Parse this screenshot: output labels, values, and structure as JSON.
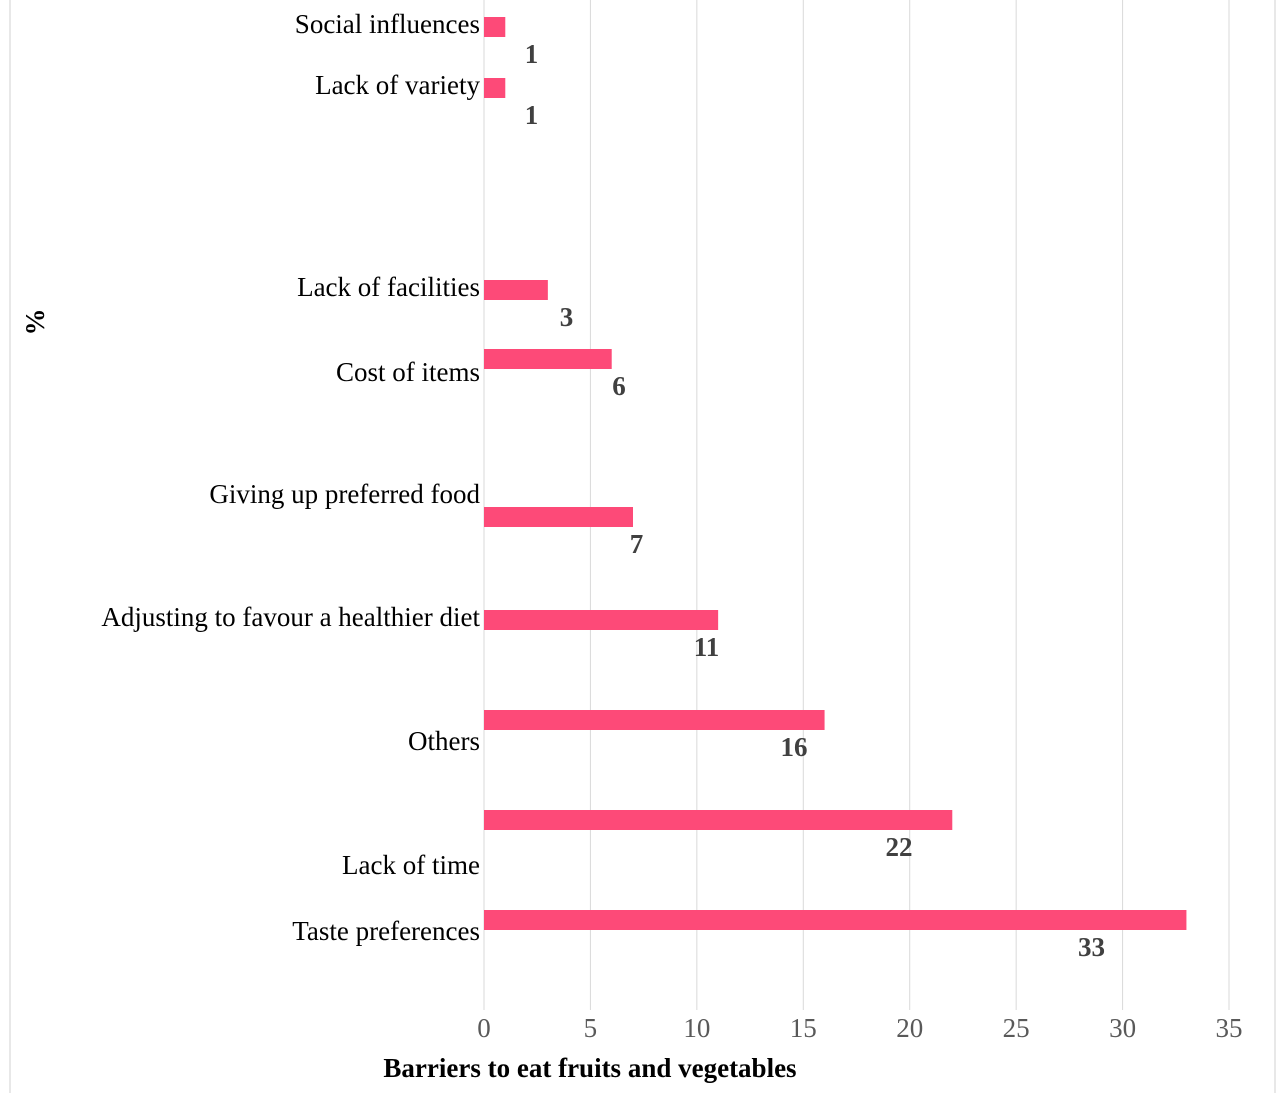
{
  "chart_data": {
    "type": "bar",
    "orientation": "horizontal",
    "x_label": "Barriers to eat fruits and vegetables",
    "y_label": "%",
    "categories": [
      "Social influences",
      "Lack of variety",
      "Lack of facilities",
      "Cost of items",
      "Giving up preferred food",
      "Adjusting to favour a healthier diet",
      "Others",
      "Lack of time",
      "Taste preferences"
    ],
    "values": [
      1,
      1,
      3,
      6,
      7,
      11,
      16,
      22,
      33
    ],
    "color": "#fd4a78",
    "xlim": [
      0,
      35
    ],
    "xticks": [
      0,
      5,
      10,
      15,
      20,
      25,
      30,
      35
    ],
    "grid": true
  }
}
